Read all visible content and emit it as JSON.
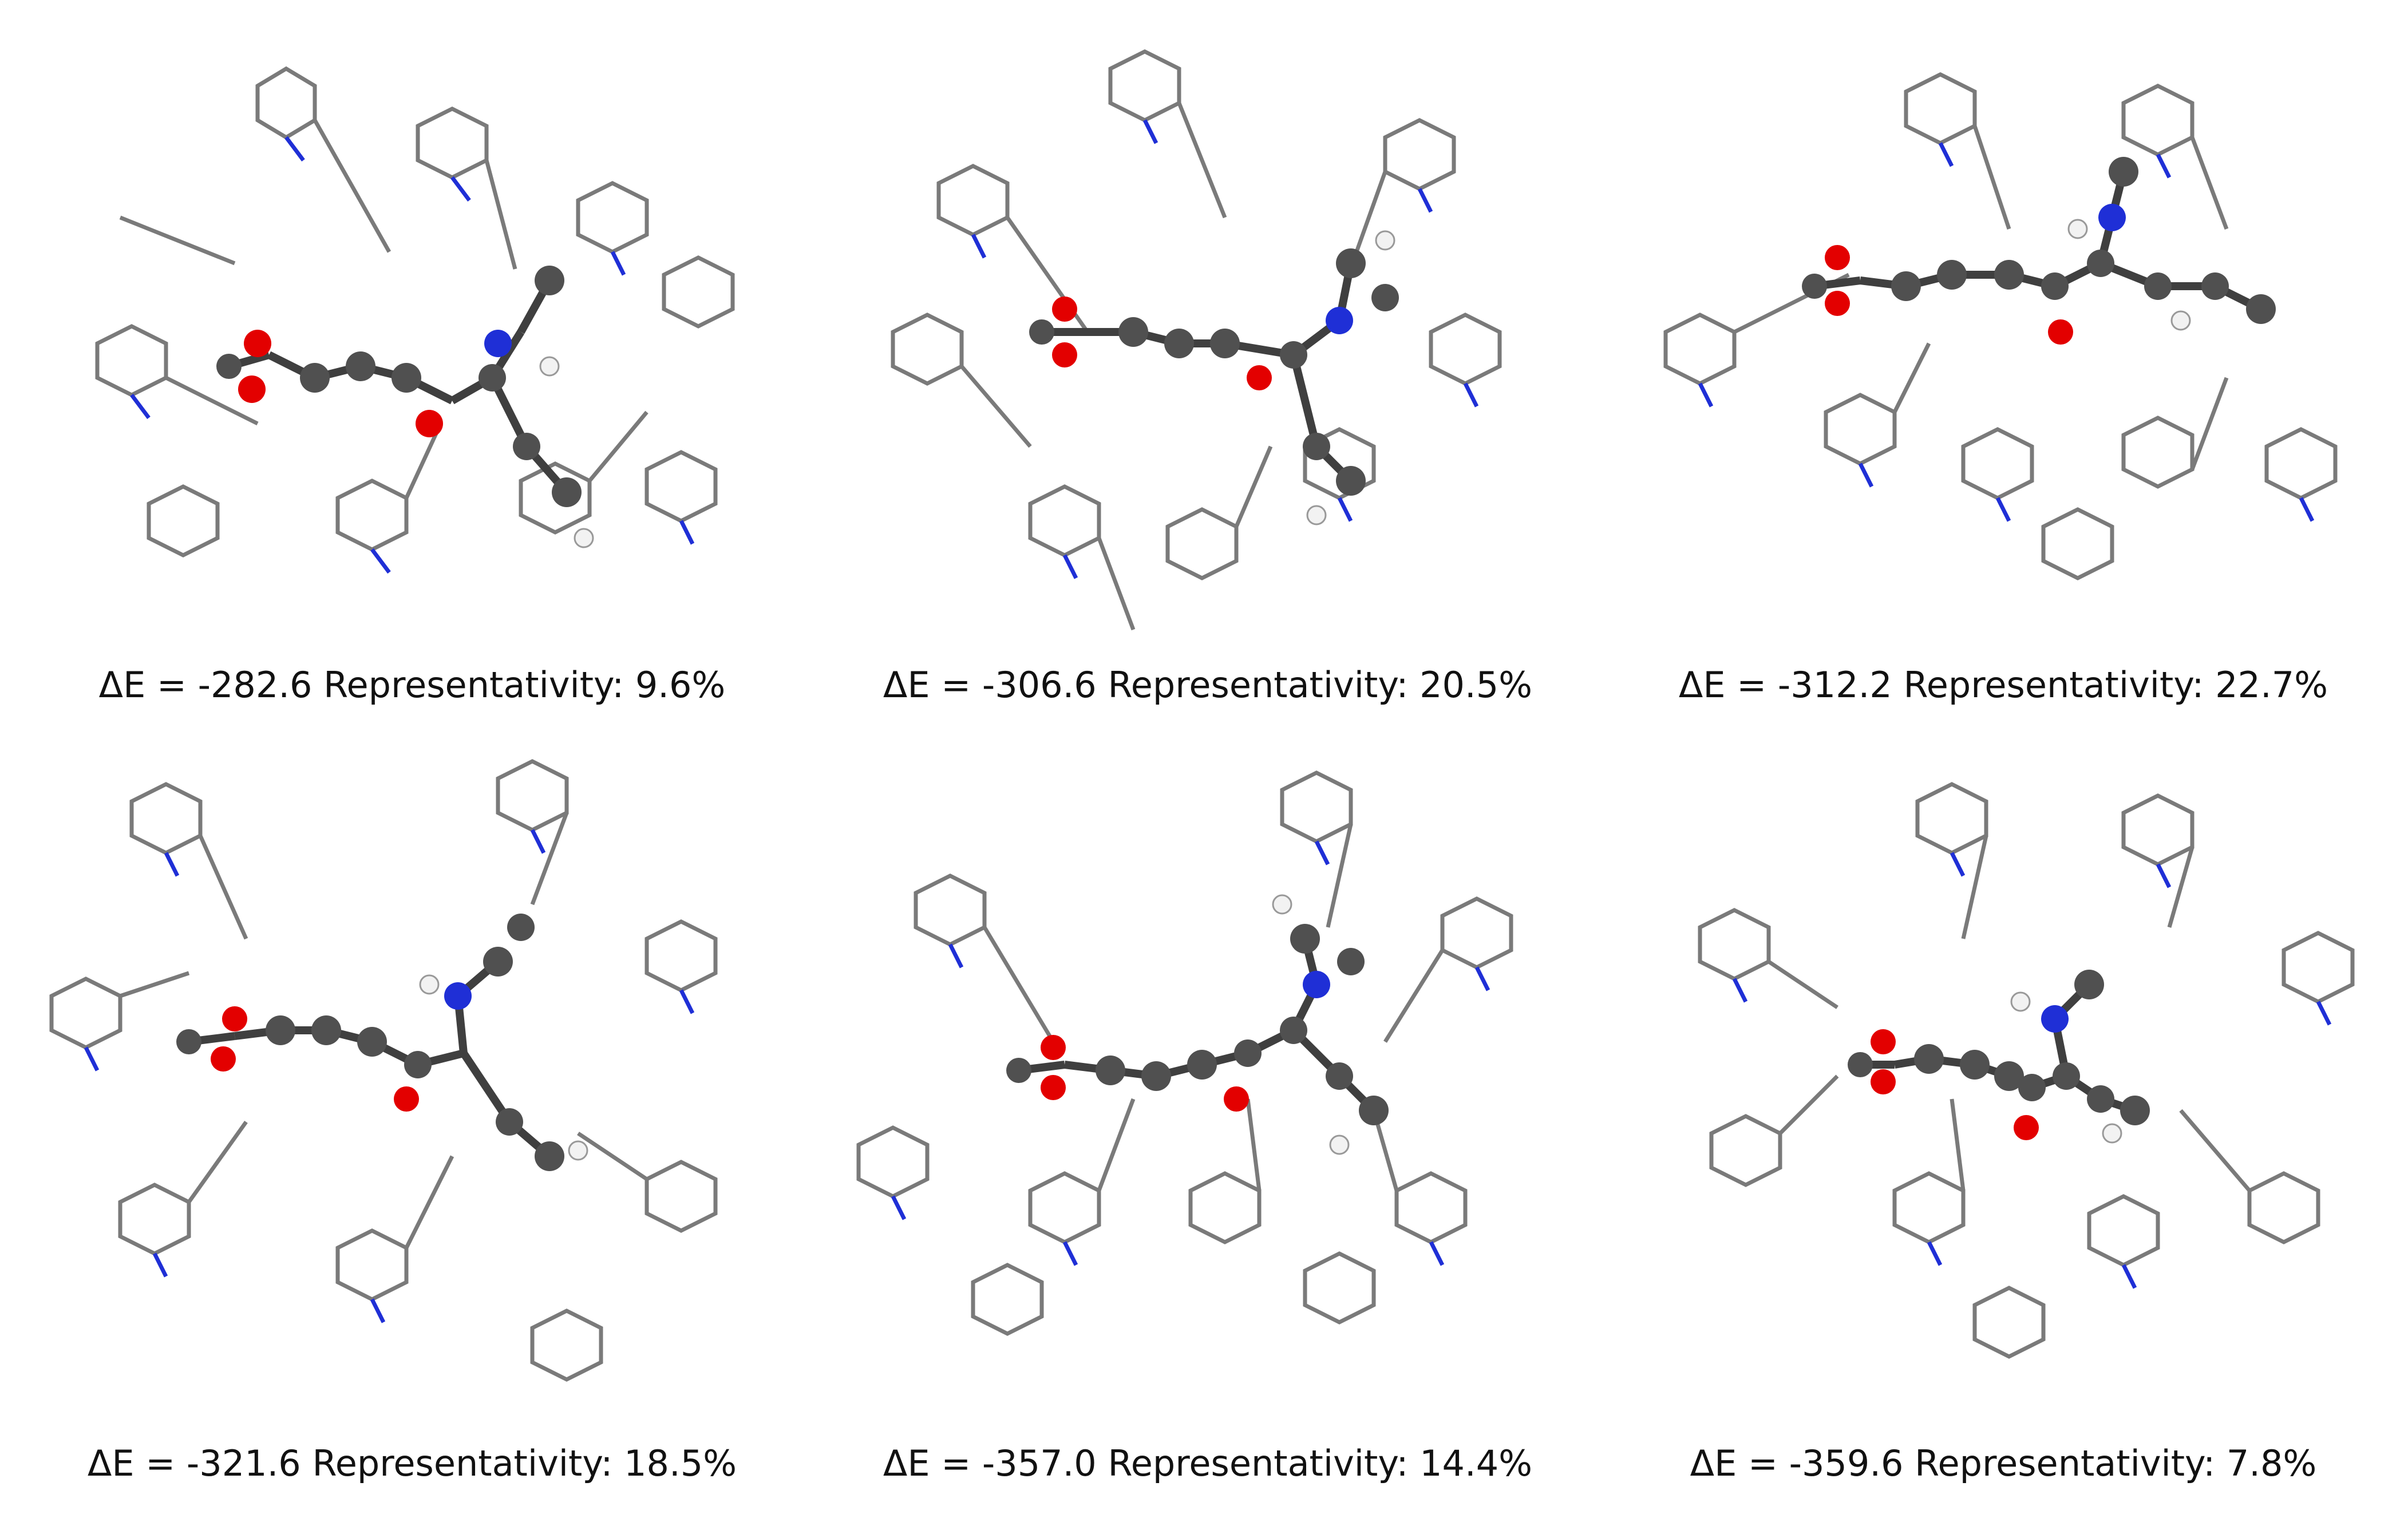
{
  "panels": [
    {
      "caption": "ΔE = -282.6 Representativity: 9.6%"
    },
    {
      "caption": "ΔE = -306.6 Representativity: 20.5%"
    },
    {
      "caption": "ΔE = -312.2 Representativity: 22.7%"
    },
    {
      "caption": "ΔE = -321.6 Representativity: 18.5%"
    },
    {
      "caption": "ΔE = -357.0 Representativity: 14.4%"
    },
    {
      "caption": "ΔE = -359.6 Representativity: 7.8%"
    }
  ],
  "colors": {
    "carbon": "#5a5a5a",
    "nitrogen": "#1f2fd6",
    "oxygen": "#e30000",
    "hydrogen": "#f2f2f2",
    "bond_frame": "#6b6b6b"
  }
}
